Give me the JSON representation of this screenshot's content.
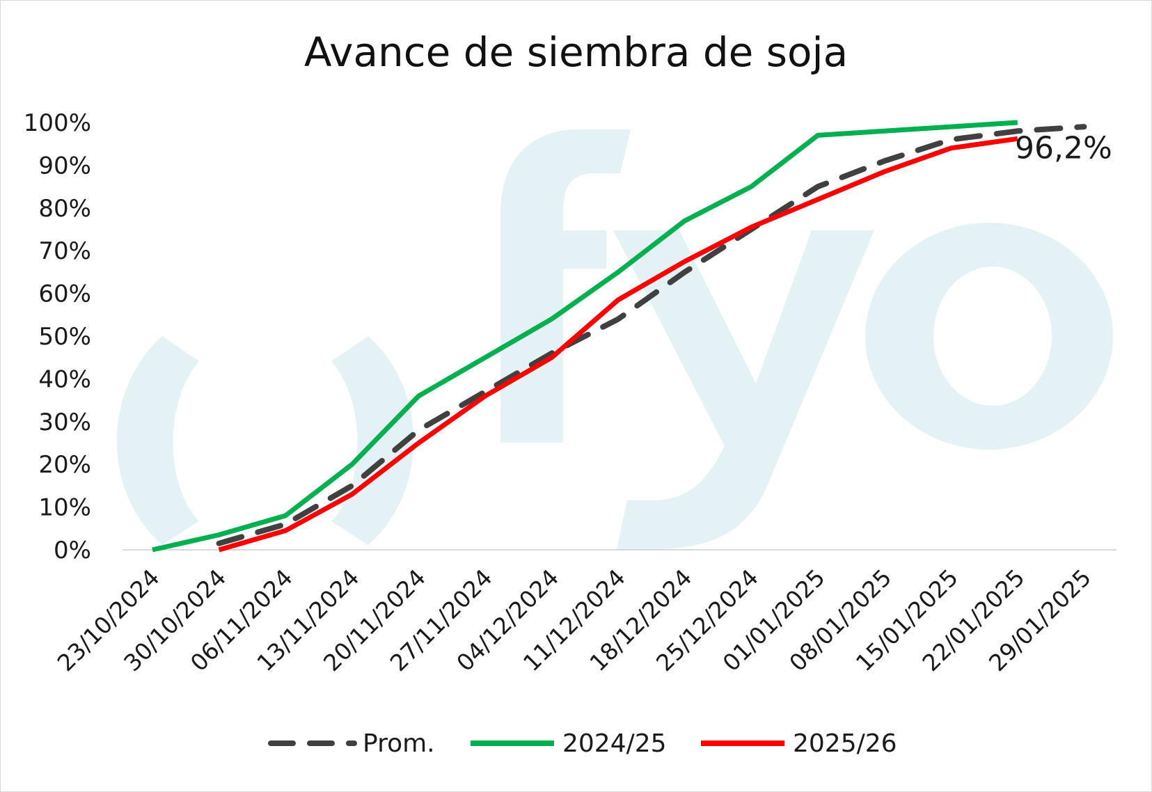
{
  "watermark": {
    "text": ")fyo",
    "color": "#e4f1f5"
  },
  "chart_data": {
    "type": "line",
    "title": "Avance de siembra de soja",
    "xlabel": "",
    "ylabel": "",
    "ylim": [
      0,
      100
    ],
    "y_ticks": [
      0,
      10,
      20,
      30,
      40,
      50,
      60,
      70,
      80,
      90,
      100
    ],
    "y_tick_labels": [
      "0%",
      "10%",
      "20%",
      "30%",
      "40%",
      "50%",
      "60%",
      "70%",
      "80%",
      "90%",
      "100%"
    ],
    "categories": [
      "23/10/2024",
      "30/10/2024",
      "06/11/2024",
      "13/11/2024",
      "20/11/2024",
      "27/11/2024",
      "04/12/2024",
      "11/12/2024",
      "18/12/2024",
      "25/12/2024",
      "01/01/2025",
      "08/01/2025",
      "15/01/2025",
      "22/01/2025",
      "29/01/2025"
    ],
    "grid": false,
    "legend_position": "bottom",
    "series": [
      {
        "name": "Prom.",
        "color": "#404040",
        "dash": true,
        "values": [
          null,
          1.5,
          6,
          15,
          28,
          37,
          46,
          54,
          65,
          75,
          85,
          91,
          96,
          98,
          99
        ]
      },
      {
        "name": "2024/25",
        "color": "#00b050",
        "dash": false,
        "values": [
          0,
          3.5,
          8,
          20,
          36,
          45,
          54,
          65,
          77,
          85,
          97,
          98,
          99,
          100,
          null
        ]
      },
      {
        "name": "2025/26",
        "color": "#ff0000",
        "dash": false,
        "values": [
          null,
          0,
          4.5,
          13,
          25,
          36,
          45,
          58.5,
          67.5,
          75.5,
          82,
          88.5,
          94,
          96.2,
          null
        ]
      }
    ],
    "annotations": [
      {
        "text": "96,2%",
        "series": "2025/26",
        "category": "22/01/2025",
        "value": 96.2
      }
    ]
  }
}
